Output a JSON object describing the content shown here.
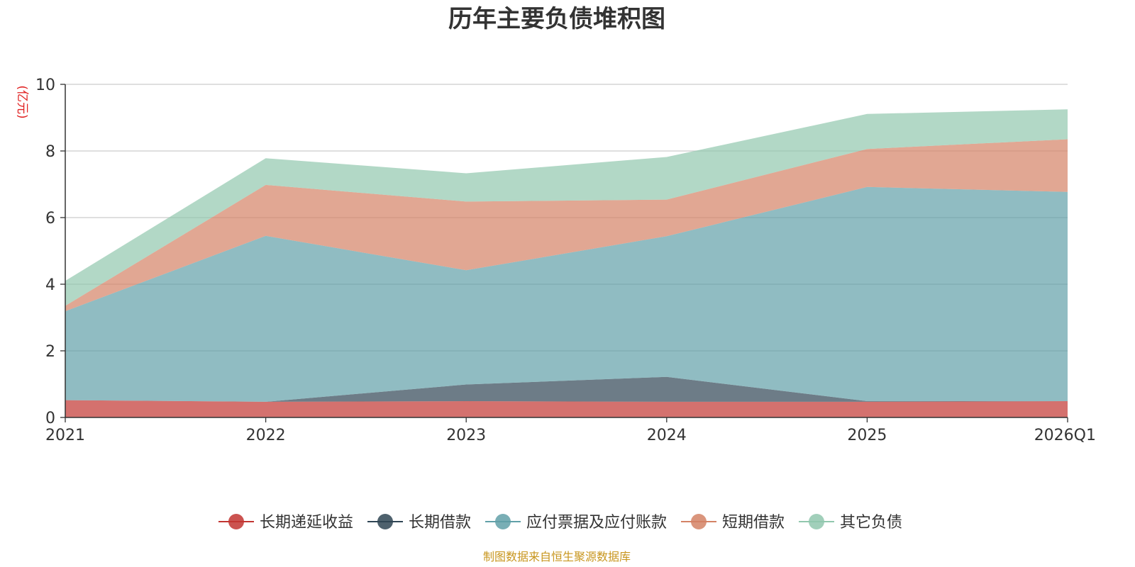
{
  "chart_data": {
    "type": "area",
    "stacked": true,
    "title": "历年主要负债堆积图",
    "unit_label": "(亿元)",
    "x": [
      "2021",
      "2022",
      "2023",
      "2024",
      "2025",
      "2026Q1"
    ],
    "ylim": [
      0,
      10
    ],
    "yticks": [
      "0",
      "2",
      "4",
      "6",
      "8",
      "10"
    ],
    "grid": true,
    "legend_position": "bottom-center",
    "series": [
      {
        "name": "长期递延收益",
        "color": "#c23531",
        "values": [
          0.52,
          0.47,
          0.49,
          0.47,
          0.47,
          0.49
        ]
      },
      {
        "name": "长期借款",
        "color": "#2f4554",
        "values": [
          0.0,
          0.0,
          0.5,
          0.75,
          0.02,
          0.0
        ]
      },
      {
        "name": "应付票据及应付账款",
        "color": "#61a0a8",
        "values": [
          2.67,
          4.98,
          3.43,
          4.22,
          6.43,
          6.28
        ]
      },
      {
        "name": "短期借款",
        "color": "#d48265",
        "values": [
          0.16,
          1.53,
          2.06,
          1.1,
          1.14,
          1.58
        ]
      },
      {
        "name": "其它负债",
        "color": "#91c7ae",
        "values": [
          0.75,
          0.8,
          0.85,
          1.28,
          1.05,
          0.9
        ]
      }
    ]
  },
  "footer": {
    "source": "制图数据来自恒生聚源数据库"
  }
}
